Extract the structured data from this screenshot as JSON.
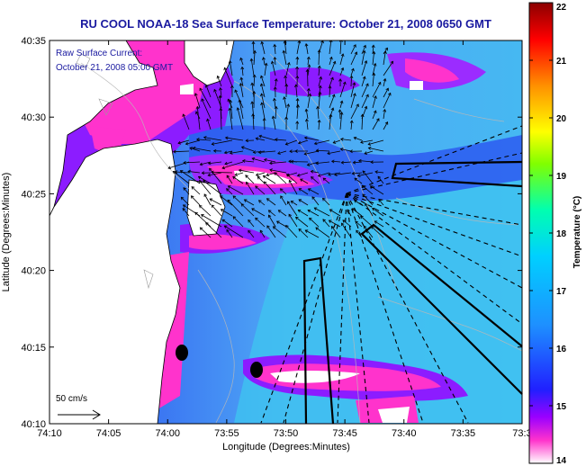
{
  "title": "RU COOL  NOAA-18  Sea Surface Temperature:  October 21, 2008 0650 GMT",
  "annotations": {
    "current_line1": "Raw Surface Current:",
    "current_line2": "October 21, 2008 05:00 GMT",
    "scale_label": "50 cm/s"
  },
  "axes": {
    "xlabel": "Longitude (Degrees:Minutes)",
    "ylabel": "Latitude (Degrees:Minutes)",
    "x_ticks": [
      "74:10",
      "74:05",
      "74:00",
      "73:55",
      "73:50",
      "73:45",
      "73:40",
      "73:35",
      "73:3"
    ],
    "y_ticks": [
      "40:35",
      "40:30",
      "40:25",
      "40:20",
      "40:15",
      "40:10"
    ]
  },
  "colorbar": {
    "label": "Temperature (°C)",
    "ticks": [
      "22",
      "21",
      "20",
      "19",
      "18",
      "17",
      "16",
      "15",
      "14"
    ],
    "min": 14,
    "max": 22,
    "colors": [
      "#ffffff",
      "#ff33cc",
      "#8000ff",
      "#1f1fff",
      "#1e90ff",
      "#00c8ff",
      "#00ffc8",
      "#80ff00",
      "#ffff00",
      "#ff8000",
      "#ff0000",
      "#8b0000"
    ]
  }
}
